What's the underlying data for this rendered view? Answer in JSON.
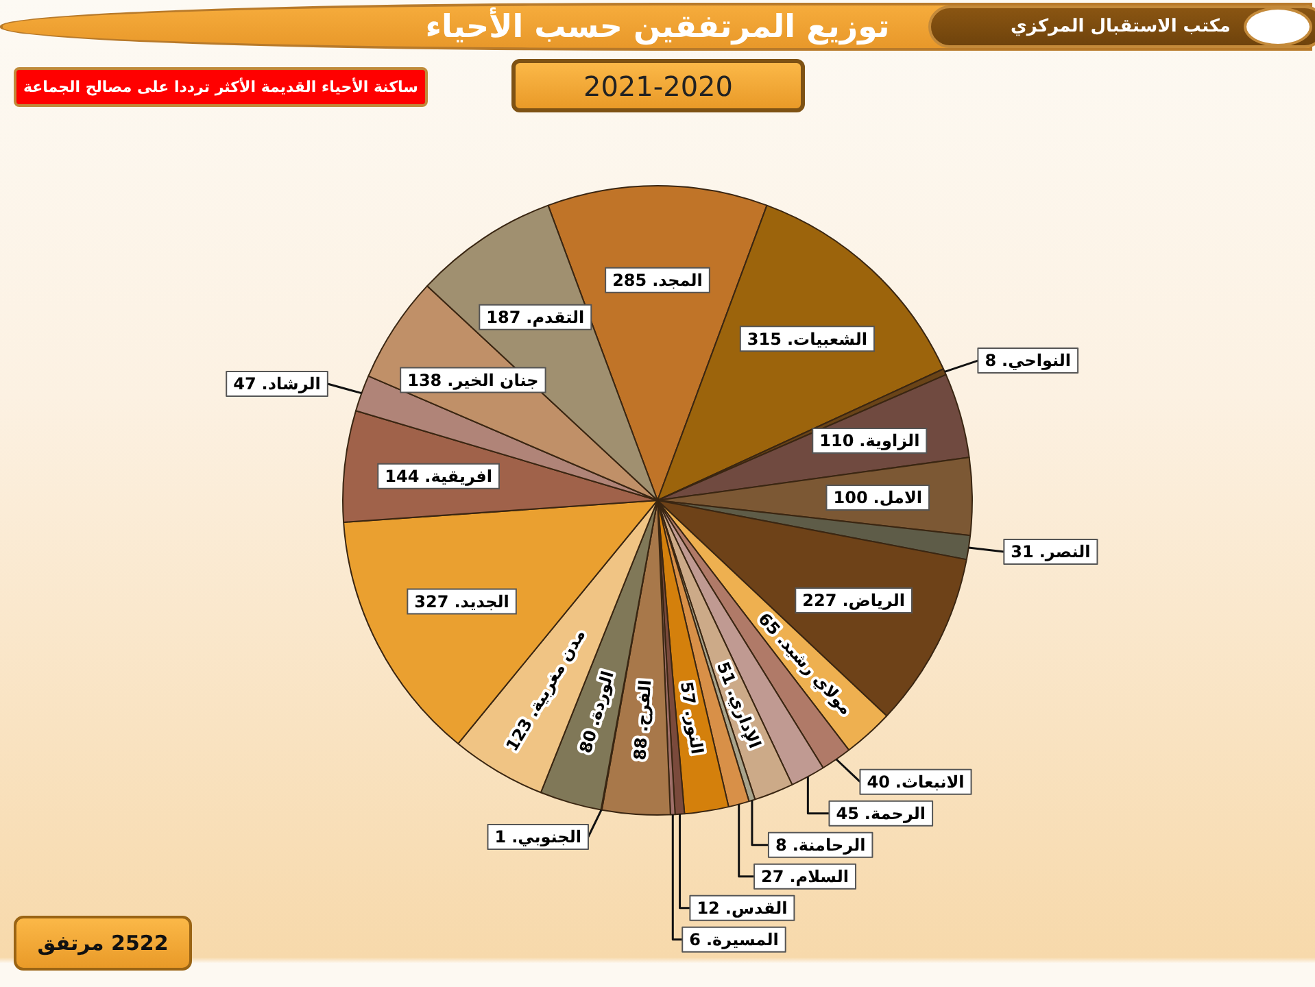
{
  "chart_data": {
    "type": "pie",
    "title": "توزيع المرتفقين حسب الأحياء",
    "subtitle": "2021-2020",
    "annotations": [
      "مكتب الاستقبال المركزي",
      "ساكنة الأحياء القديمة الأكثر ترددا على مصالح الجماعة",
      "2522 مرتفق"
    ],
    "categories": [
      "المجد.",
      "الشعبيات.",
      "النواحي.",
      "الزاوية.",
      "الامل.",
      "النصر.",
      "الرياض.",
      "مولاي رشيد.",
      "الانبعاث.",
      "الرحمة.",
      "الإداري.",
      "الرحامنة.",
      "السلام.",
      "النور.",
      "القدس.",
      "المسيرة.",
      "الفرح.",
      "الجنوبي.",
      "الوردة.",
      "مدن مغربية.",
      "الجديد.",
      "افريقية.",
      "الرشاد.",
      "جنان الخير.",
      "التقدم."
    ],
    "values": [
      285,
      315,
      8,
      110,
      100,
      31,
      227,
      65,
      40,
      45,
      51,
      8,
      27,
      57,
      12,
      6,
      88,
      1,
      80,
      123,
      327,
      144,
      47,
      138,
      187
    ],
    "colors": [
      "#c07428",
      "#9c640c",
      "#6a4418",
      "#704a40",
      "#7c5834",
      "#5e5c48",
      "#6e4218",
      "#eeb050",
      "#b07a68",
      "#c09a92",
      "#ccaa88",
      "#a8a48c",
      "#d89048",
      "#d4800c",
      "#7a4a3c",
      "#a0706a",
      "#a8784a",
      "#b07040",
      "#807858",
      "#f0c484",
      "#eaa030",
      "#a0624a",
      "#b08478",
      "#c09068",
      "#a09070"
    ],
    "data_labels": true
  }
}
